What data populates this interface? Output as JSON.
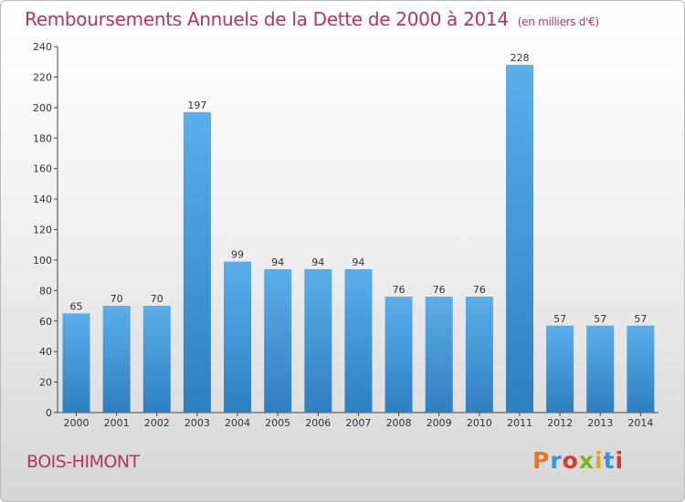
{
  "header": {
    "title": "Remboursements Annuels de la Dette de 2000 à 2014",
    "subtitle": "(en milliers d'€)"
  },
  "commune": "BOIS-HIMONT",
  "logo": {
    "text": "Proxiti",
    "colors": [
      "#e8761e",
      "#3d8fd6",
      "#d63b2e",
      "#7ab51d",
      "#e8a21e",
      "#3d8fd6",
      "#d63b2e"
    ]
  },
  "colors": {
    "bar_top": "#5aaeea",
    "bar_bottom": "#2f7fc0",
    "title": "#b5355e"
  },
  "chart_data": {
    "type": "bar",
    "categories": [
      "2000",
      "2001",
      "2002",
      "2003",
      "2004",
      "2005",
      "2006",
      "2007",
      "2008",
      "2009",
      "2010",
      "2011",
      "2012",
      "2013",
      "2014"
    ],
    "values": [
      65,
      70,
      70,
      197,
      99,
      94,
      94,
      94,
      76,
      76,
      76,
      228,
      57,
      57,
      57
    ],
    "yticks": [
      0,
      20,
      40,
      60,
      80,
      100,
      120,
      140,
      160,
      180,
      200,
      220,
      240
    ],
    "ylim": [
      0,
      240
    ],
    "grid": false,
    "title": "Remboursements Annuels de la Dette de 2000 à 2014",
    "subtitle": "(en milliers d'€)"
  }
}
